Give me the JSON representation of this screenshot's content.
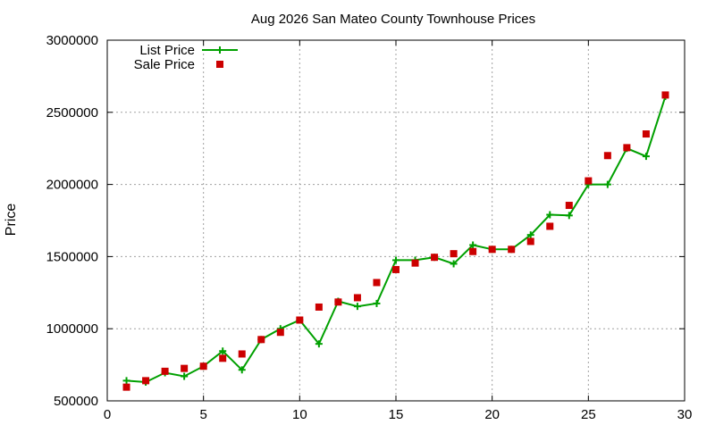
{
  "chart_data": {
    "type": "line",
    "title": "Aug 2026 San Mateo County Townhouse Prices",
    "xlabel": "",
    "ylabel": "Price",
    "xlim": [
      0,
      30
    ],
    "ylim": [
      500000,
      3000000
    ],
    "xticks": [
      0,
      5,
      10,
      15,
      20,
      25,
      30
    ],
    "yticks": [
      500000,
      1000000,
      1500000,
      2000000,
      2500000,
      3000000
    ],
    "grid": true,
    "legend_position": "top-left",
    "series": [
      {
        "name": "List Price",
        "style": "line-with-plus-markers",
        "color": "#00a000",
        "x": [
          1,
          2,
          3,
          4,
          5,
          6,
          7,
          8,
          9,
          10,
          11,
          12,
          13,
          14,
          15,
          16,
          17,
          18,
          19,
          20,
          21,
          22,
          23,
          24,
          25,
          26,
          27,
          28,
          29
        ],
        "values": [
          640000,
          630000,
          695000,
          670000,
          740000,
          845000,
          715000,
          925000,
          1000000,
          1060000,
          895000,
          1190000,
          1155000,
          1175000,
          1475000,
          1475000,
          1495000,
          1450000,
          1580000,
          1550000,
          1550000,
          1650000,
          1790000,
          1785000,
          2000000,
          2000000,
          2250000,
          2195000,
          2610000
        ]
      },
      {
        "name": "Sale Price",
        "style": "square-markers",
        "color": "#cc0000",
        "x": [
          1,
          2,
          3,
          4,
          5,
          6,
          7,
          8,
          9,
          10,
          11,
          12,
          13,
          14,
          15,
          16,
          17,
          18,
          19,
          20,
          21,
          22,
          23,
          24,
          25,
          26,
          27,
          28,
          29
        ],
        "values": [
          595000,
          640000,
          705000,
          725000,
          740000,
          795000,
          825000,
          925000,
          975000,
          1060000,
          1150000,
          1185000,
          1215000,
          1320000,
          1410000,
          1455000,
          1495000,
          1520000,
          1535000,
          1550000,
          1550000,
          1605000,
          1710000,
          1855000,
          2025000,
          2200000,
          2255000,
          2350000,
          2620000
        ]
      }
    ]
  }
}
